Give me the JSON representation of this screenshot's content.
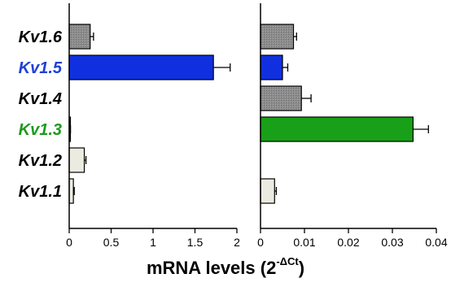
{
  "chart_data": {
    "type": "bar",
    "orientation": "horizontal",
    "categories": [
      {
        "label": "Kv1.6",
        "color": "#000000"
      },
      {
        "label": "Kv1.5",
        "color": "#1f3fd8"
      },
      {
        "label": "Kv1.4",
        "color": "#000000"
      },
      {
        "label": "Kv1.3",
        "color": "#1e9a1e"
      },
      {
        "label": "Kv1.2",
        "color": "#000000"
      },
      {
        "label": "Kv1.1",
        "color": "#000000"
      }
    ],
    "xlabel_text": "mRNA levels (2",
    "xlabel_superscript": "-ΔCt",
    "xlabel_close": ")",
    "panels": [
      {
        "name": "left",
        "xlim": [
          0,
          2
        ],
        "ticks": [
          "0",
          "0.5",
          "1",
          "1.5",
          "2"
        ],
        "tick_values": [
          0,
          0.5,
          1,
          1.5,
          2
        ],
        "bars": [
          {
            "category": "Kv1.6",
            "value": 0.25,
            "error": 0.04,
            "fill": "#8c8c8c",
            "hatch": true
          },
          {
            "category": "Kv1.5",
            "value": 1.72,
            "error": 0.2,
            "fill": "#1030e0",
            "hatch": false
          },
          {
            "category": "Kv1.4",
            "value": null,
            "error": null,
            "fill": "#8c8c8c",
            "hatch": true
          },
          {
            "category": "Kv1.3",
            "value": 0.01,
            "error": 0.005,
            "fill": "#18a018",
            "hatch": false
          },
          {
            "category": "Kv1.2",
            "value": 0.18,
            "error": 0.02,
            "fill": "#ecebe1",
            "hatch": false
          },
          {
            "category": "Kv1.1",
            "value": 0.05,
            "error": 0.01,
            "fill": "#ecebe1",
            "hatch": false
          }
        ]
      },
      {
        "name": "right",
        "xlim": [
          0,
          0.04
        ],
        "ticks": [
          "0",
          "0.01",
          "0.02",
          "0.03",
          "0.04"
        ],
        "tick_values": [
          0,
          0.01,
          0.02,
          0.03,
          0.04
        ],
        "bars": [
          {
            "category": "Kv1.6",
            "value": 0.0075,
            "error": 0.0007,
            "fill": "#8c8c8c",
            "hatch": true
          },
          {
            "category": "Kv1.5",
            "value": 0.005,
            "error": 0.0012,
            "fill": "#1030e0",
            "hatch": false
          },
          {
            "category": "Kv1.4",
            "value": 0.0093,
            "error": 0.0022,
            "fill": "#8c8c8c",
            "hatch": true
          },
          {
            "category": "Kv1.3",
            "value": 0.0347,
            "error": 0.0035,
            "fill": "#18a018",
            "hatch": false
          },
          {
            "category": "Kv1.2",
            "value": null,
            "error": null,
            "fill": "#ecebe1",
            "hatch": false
          },
          {
            "category": "Kv1.1",
            "value": 0.0032,
            "error": 0.0004,
            "fill": "#ecebe1",
            "hatch": false
          }
        ]
      }
    ],
    "grid": false,
    "legend": "none"
  }
}
